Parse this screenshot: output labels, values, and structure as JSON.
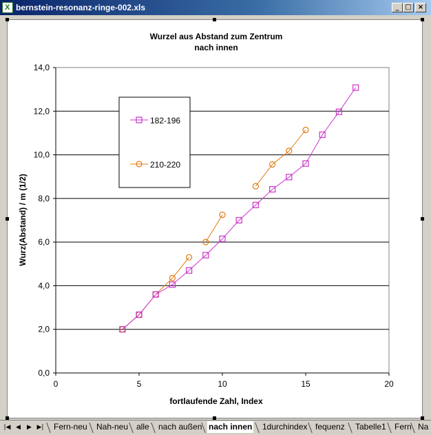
{
  "window": {
    "title": "bernstein-resonanz-ringe-002.xls"
  },
  "controls": {
    "minimize": "_",
    "maximize": "□",
    "close": "×"
  },
  "chart_data": {
    "type": "line",
    "title": "Wurzel aus Abstand zum Zentrum",
    "subtitle": "nach innen",
    "xlabel": "fortlaufende Zahl, Index",
    "ylabel": "Wurz(Abstand) / m (1/2)",
    "xlim": [
      0,
      20
    ],
    "ylim": [
      0,
      14
    ],
    "x_ticks": [
      "0",
      "5",
      "10",
      "15",
      "20"
    ],
    "y_ticks": [
      "0,0",
      "2,0",
      "4,0",
      "6,0",
      "8,0",
      "10,0",
      "12,0",
      "14,0"
    ],
    "grid": "horizontal",
    "legend": "top-left",
    "series": [
      {
        "name": "182-196",
        "color": "#cc33cc",
        "marker": "square",
        "segments": [
          [
            [
              4,
              2.0
            ],
            [
              5,
              2.67
            ],
            [
              6,
              3.6
            ],
            [
              7,
              4.05
            ],
            [
              8,
              4.7
            ],
            [
              9,
              5.4
            ],
            [
              10,
              6.15
            ],
            [
              11,
              7.0
            ],
            [
              12,
              7.7
            ],
            [
              13,
              8.42
            ],
            [
              14,
              8.98
            ],
            [
              15,
              9.6
            ],
            [
              16,
              10.92
            ],
            [
              17,
              11.97
            ],
            [
              18,
              13.08
            ]
          ]
        ]
      },
      {
        "name": "210-220",
        "color": "#e07a10",
        "marker": "circle",
        "segments": [
          [
            [
              4,
              2.0
            ],
            [
              5,
              2.67
            ],
            [
              6,
              3.6
            ],
            [
              7,
              4.35
            ],
            [
              8,
              5.3
            ]
          ],
          [
            [
              9,
              6.0
            ],
            [
              10,
              7.25
            ]
          ],
          [
            [
              12,
              8.56
            ],
            [
              13,
              9.56
            ],
            [
              14,
              10.18
            ],
            [
              15,
              11.14
            ]
          ]
        ]
      }
    ]
  },
  "sheet_tabs": {
    "nav": [
      "|◀",
      "◀",
      "▶",
      "▶|"
    ],
    "tabs": [
      "Fern-neu",
      "Nah-neu",
      "alle",
      "nach außen",
      "nach innen",
      "1durchindex",
      "fequenz",
      "Tabelle1",
      "Fern",
      "Na"
    ],
    "active": 4
  }
}
